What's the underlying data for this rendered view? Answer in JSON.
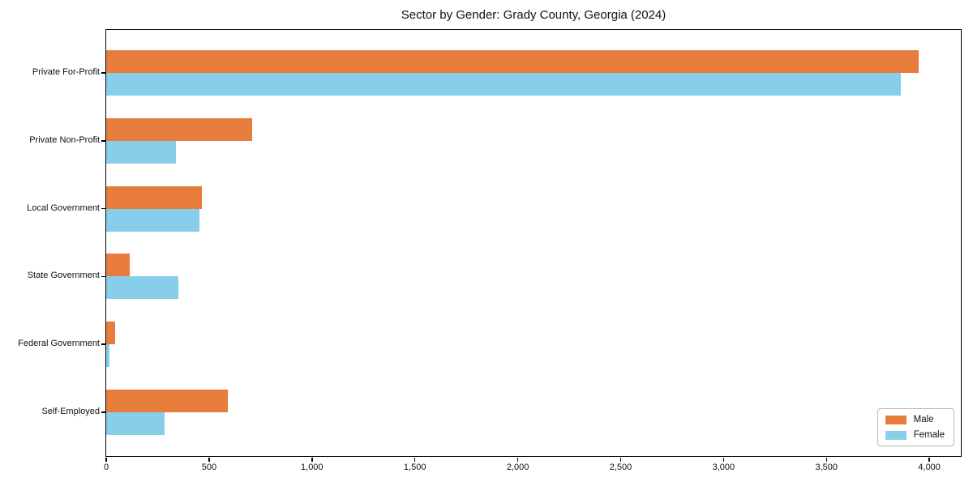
{
  "chart_data": {
    "type": "bar",
    "orientation": "horizontal",
    "title": "Sector by Gender: Grady County, Georgia (2024)",
    "xlabel": "",
    "ylabel": "",
    "categories": [
      "Private For-Profit",
      "Private Non-Profit",
      "Local Government",
      "State Government",
      "Federal Government",
      "Self-Employed"
    ],
    "series": [
      {
        "name": "Male",
        "color": "#e87c3c",
        "values": [
          3950,
          710,
          465,
          115,
          45,
          590
        ]
      },
      {
        "name": "Female",
        "color": "#87ceeb",
        "values": [
          3860,
          340,
          455,
          350,
          15,
          285
        ]
      }
    ],
    "xlim": [
      0,
      4153
    ],
    "xticks": [
      0,
      500,
      1000,
      1500,
      2000,
      2500,
      3000,
      3500,
      4000
    ],
    "xtick_labels": [
      "0",
      "500",
      "1,000",
      "1,500",
      "2,000",
      "2,500",
      "3,000",
      "3,500",
      "4,000"
    ],
    "grid": false,
    "legend_position": "lower right",
    "plot_border_color": "#000000"
  }
}
